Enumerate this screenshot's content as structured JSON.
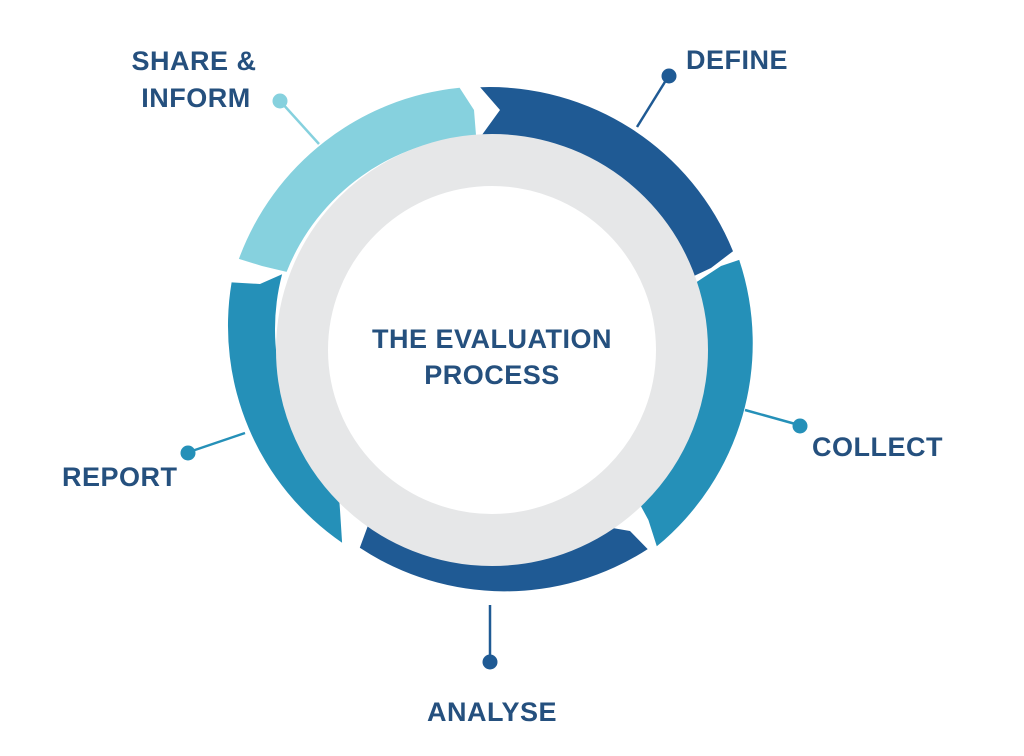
{
  "title": {
    "line1": "THE EVALUATION",
    "line2": "PROCESS"
  },
  "steps": [
    {
      "label": "DEFINE",
      "color": "#1f5a94"
    },
    {
      "label": "COLLECT",
      "color": "#2590b8"
    },
    {
      "label": "ANALYSE",
      "color": "#1f5a94"
    },
    {
      "label": "REPORT",
      "color": "#2590b8"
    },
    {
      "label_line1": "SHARE &",
      "label_line2": "INFORM",
      "color": "#86d1de"
    }
  ],
  "colors": {
    "text": "#25507e",
    "inner_ring": "#e6e7e8",
    "background": "#ffffff"
  }
}
